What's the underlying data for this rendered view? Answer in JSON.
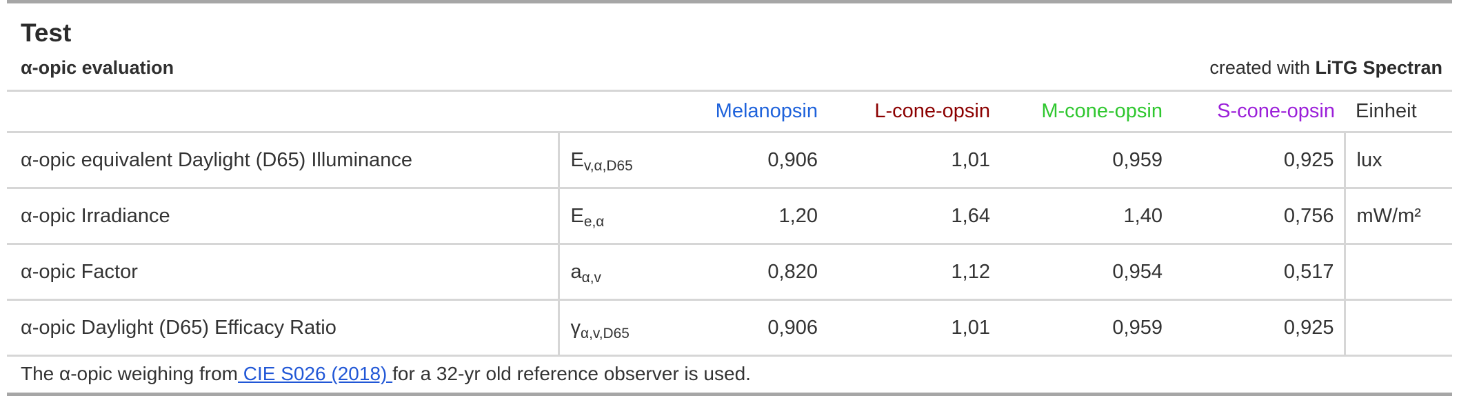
{
  "header": {
    "title": "Test",
    "subtitle": "α-opic evaluation",
    "credit_prefix": "created with ",
    "credit_brand": "LiTG Spectran"
  },
  "table": {
    "column_headers": [
      {
        "label": "Melanopsin",
        "color": "#1e62db"
      },
      {
        "label": "L-cone-opsin",
        "color": "#8b0000"
      },
      {
        "label": "M-cone-opsin",
        "color": "#2fc72f"
      },
      {
        "label": "S-cone-opsin",
        "color": "#9b1fd9"
      },
      {
        "label": "Einheit",
        "color": "#333333"
      }
    ],
    "rows": [
      {
        "label": "α-opic equivalent Daylight (D65) Illuminance",
        "symbol_base": "E",
        "symbol_sub": "v,α,D65",
        "values": [
          "0,906",
          "1,01",
          "0,959",
          "0,925"
        ],
        "unit": "lux"
      },
      {
        "label": "α-opic Irradiance",
        "symbol_base": "E",
        "symbol_sub": "e,α",
        "values": [
          "1,20",
          "1,64",
          "1,40",
          "0,756"
        ],
        "unit": "mW/m²"
      },
      {
        "label": "α-opic Factor",
        "symbol_base": "a",
        "symbol_sub": "α,v",
        "values": [
          "0,820",
          "1,12",
          "0,954",
          "0,517"
        ],
        "unit": ""
      },
      {
        "label": "α-opic Daylight (D65) Efficacy Ratio",
        "symbol_base": "γ",
        "symbol_sub": "α,v,D65",
        "values": [
          "0,906",
          "1,01",
          "0,959",
          "0,925"
        ],
        "unit": ""
      }
    ]
  },
  "footer": {
    "text_before": "The α-opic weighing from",
    "link_text": " CIE S026 (2018) ",
    "text_after": "for a 32-yr old reference observer is used.",
    "link_color": "#2157d6"
  },
  "colors": {
    "outer_rule": "#a6a6a6",
    "inner_rule": "#d6d6d6",
    "body_text": "#333333"
  }
}
